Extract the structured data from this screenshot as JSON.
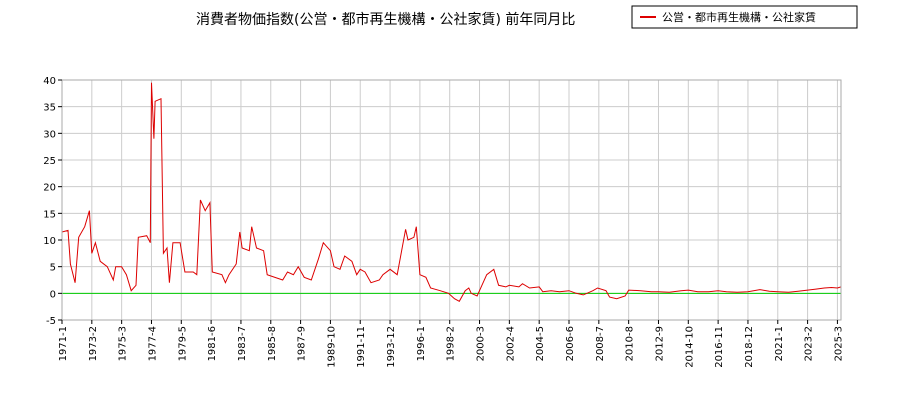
{
  "chart_data": {
    "type": "line",
    "title": "消費者物価指数(公営・都市再生機構・公社家賃) 前年同月比",
    "xlabel": "",
    "ylabel": "",
    "ylim": [
      -5,
      40
    ],
    "y_ticks": [
      -5,
      0,
      5,
      10,
      15,
      20,
      25,
      30,
      35,
      40
    ],
    "x_tick_labels": [
      "1971-1",
      "1973-2",
      "1975-3",
      "1977-4",
      "1979-5",
      "1981-6",
      "1983-7",
      "1985-8",
      "1987-9",
      "1989-10",
      "1991-11",
      "1993-12",
      "1996-1",
      "1998-2",
      "2000-3",
      "2002-4",
      "2004-5",
      "2006-6",
      "2008-7",
      "2010-8",
      "2012-9",
      "2014-10",
      "2016-11",
      "2018-12",
      "2021-1",
      "2023-2",
      "2025-3"
    ],
    "grid": true,
    "legend_position": "top-right",
    "zero_line_color": "#00cc00",
    "series": [
      {
        "name": "公営・都市再生機構・公社家賃",
        "color": "#dd0000",
        "points": [
          [
            "1971-01",
            11.5
          ],
          [
            "1971-06",
            11.8
          ],
          [
            "1971-08",
            5.5
          ],
          [
            "1971-12",
            2.0
          ],
          [
            "1972-03",
            10.5
          ],
          [
            "1972-08",
            12.5
          ],
          [
            "1972-12",
            15.5
          ],
          [
            "1973-02",
            7.5
          ],
          [
            "1973-05",
            9.5
          ],
          [
            "1973-09",
            6.0
          ],
          [
            "1974-03",
            5.0
          ],
          [
            "1974-08",
            2.5
          ],
          [
            "1974-10",
            5.0
          ],
          [
            "1975-03",
            5.0
          ],
          [
            "1975-07",
            3.5
          ],
          [
            "1975-11",
            0.5
          ],
          [
            "1976-03",
            1.5
          ],
          [
            "1976-05",
            10.5
          ],
          [
            "1976-12",
            10.8
          ],
          [
            "1977-03",
            9.5
          ],
          [
            "1977-04",
            39.5
          ],
          [
            "1977-06",
            29.0
          ],
          [
            "1977-07",
            36.0
          ],
          [
            "1977-12",
            36.5
          ],
          [
            "1978-02",
            7.5
          ],
          [
            "1978-05",
            8.5
          ],
          [
            "1978-07",
            2.0
          ],
          [
            "1978-10",
            9.5
          ],
          [
            "1979-04",
            9.5
          ],
          [
            "1979-08",
            4.0
          ],
          [
            "1980-03",
            4.0
          ],
          [
            "1980-06",
            3.5
          ],
          [
            "1980-09",
            17.5
          ],
          [
            "1981-01",
            15.5
          ],
          [
            "1981-05",
            17.0
          ],
          [
            "1981-07",
            4.0
          ],
          [
            "1982-03",
            3.5
          ],
          [
            "1982-06",
            2.0
          ],
          [
            "1982-09",
            3.5
          ],
          [
            "1983-03",
            5.5
          ],
          [
            "1983-06",
            11.5
          ],
          [
            "1983-08",
            8.5
          ],
          [
            "1984-02",
            8.0
          ],
          [
            "1984-04",
            12.5
          ],
          [
            "1984-08",
            8.5
          ],
          [
            "1985-02",
            8.0
          ],
          [
            "1985-05",
            3.5
          ],
          [
            "1986-06",
            2.5
          ],
          [
            "1986-10",
            4.0
          ],
          [
            "1987-03",
            3.5
          ],
          [
            "1987-07",
            5.0
          ],
          [
            "1987-12",
            3.0
          ],
          [
            "1988-06",
            2.5
          ],
          [
            "1988-12",
            6.5
          ],
          [
            "1989-04",
            9.5
          ],
          [
            "1989-10",
            8.0
          ],
          [
            "1990-01",
            5.0
          ],
          [
            "1990-06",
            4.5
          ],
          [
            "1990-10",
            7.0
          ],
          [
            "1991-04",
            6.0
          ],
          [
            "1991-08",
            3.5
          ],
          [
            "1991-11",
            4.5
          ],
          [
            "1992-03",
            4.0
          ],
          [
            "1992-08",
            2.0
          ],
          [
            "1993-03",
            2.5
          ],
          [
            "1993-06",
            3.5
          ],
          [
            "1993-12",
            4.5
          ],
          [
            "1994-06",
            3.5
          ],
          [
            "1995-01",
            12.0
          ],
          [
            "1995-03",
            10.0
          ],
          [
            "1995-08",
            10.5
          ],
          [
            "1995-10",
            12.5
          ],
          [
            "1996-01",
            3.5
          ],
          [
            "1996-06",
            3.0
          ],
          [
            "1996-10",
            1.0
          ],
          [
            "1997-06",
            0.5
          ],
          [
            "1998-01",
            0.0
          ],
          [
            "1998-06",
            -1.0
          ],
          [
            "1998-10",
            -1.5
          ],
          [
            "1999-03",
            0.5
          ],
          [
            "1999-06",
            1.0
          ],
          [
            "1999-08",
            0.0
          ],
          [
            "2000-01",
            -0.5
          ],
          [
            "2000-03",
            0.5
          ],
          [
            "2000-09",
            3.5
          ],
          [
            "2001-03",
            4.5
          ],
          [
            "2001-07",
            1.5
          ],
          [
            "2002-01",
            1.2
          ],
          [
            "2002-04",
            1.5
          ],
          [
            "2002-12",
            1.2
          ],
          [
            "2003-03",
            1.8
          ],
          [
            "2003-09",
            1.0
          ],
          [
            "2004-05",
            1.2
          ],
          [
            "2004-08",
            0.3
          ],
          [
            "2005-03",
            0.5
          ],
          [
            "2005-10",
            0.3
          ],
          [
            "2006-06",
            0.5
          ],
          [
            "2006-12",
            0.0
          ],
          [
            "2007-06",
            -0.3
          ],
          [
            "2008-02",
            0.5
          ],
          [
            "2008-06",
            1.0
          ],
          [
            "2009-01",
            0.5
          ],
          [
            "2009-04",
            -0.7
          ],
          [
            "2009-10",
            -1.0
          ],
          [
            "2010-05",
            -0.5
          ],
          [
            "2010-08",
            0.6
          ],
          [
            "2011-06",
            0.5
          ],
          [
            "2012-03",
            0.3
          ],
          [
            "2012-09",
            0.3
          ],
          [
            "2013-06",
            0.2
          ],
          [
            "2014-04",
            0.5
          ],
          [
            "2014-10",
            0.6
          ],
          [
            "2015-06",
            0.3
          ],
          [
            "2016-03",
            0.3
          ],
          [
            "2016-11",
            0.5
          ],
          [
            "2017-06",
            0.3
          ],
          [
            "2018-03",
            0.2
          ],
          [
            "2018-12",
            0.3
          ],
          [
            "2019-10",
            0.7
          ],
          [
            "2020-06",
            0.4
          ],
          [
            "2021-01",
            0.3
          ],
          [
            "2021-10",
            0.2
          ],
          [
            "2022-06",
            0.4
          ],
          [
            "2023-02",
            0.6
          ],
          [
            "2023-09",
            0.8
          ],
          [
            "2024-04",
            1.0
          ],
          [
            "2024-10",
            1.1
          ],
          [
            "2025-03",
            1.0
          ],
          [
            "2025-06",
            1.2
          ]
        ]
      }
    ]
  }
}
